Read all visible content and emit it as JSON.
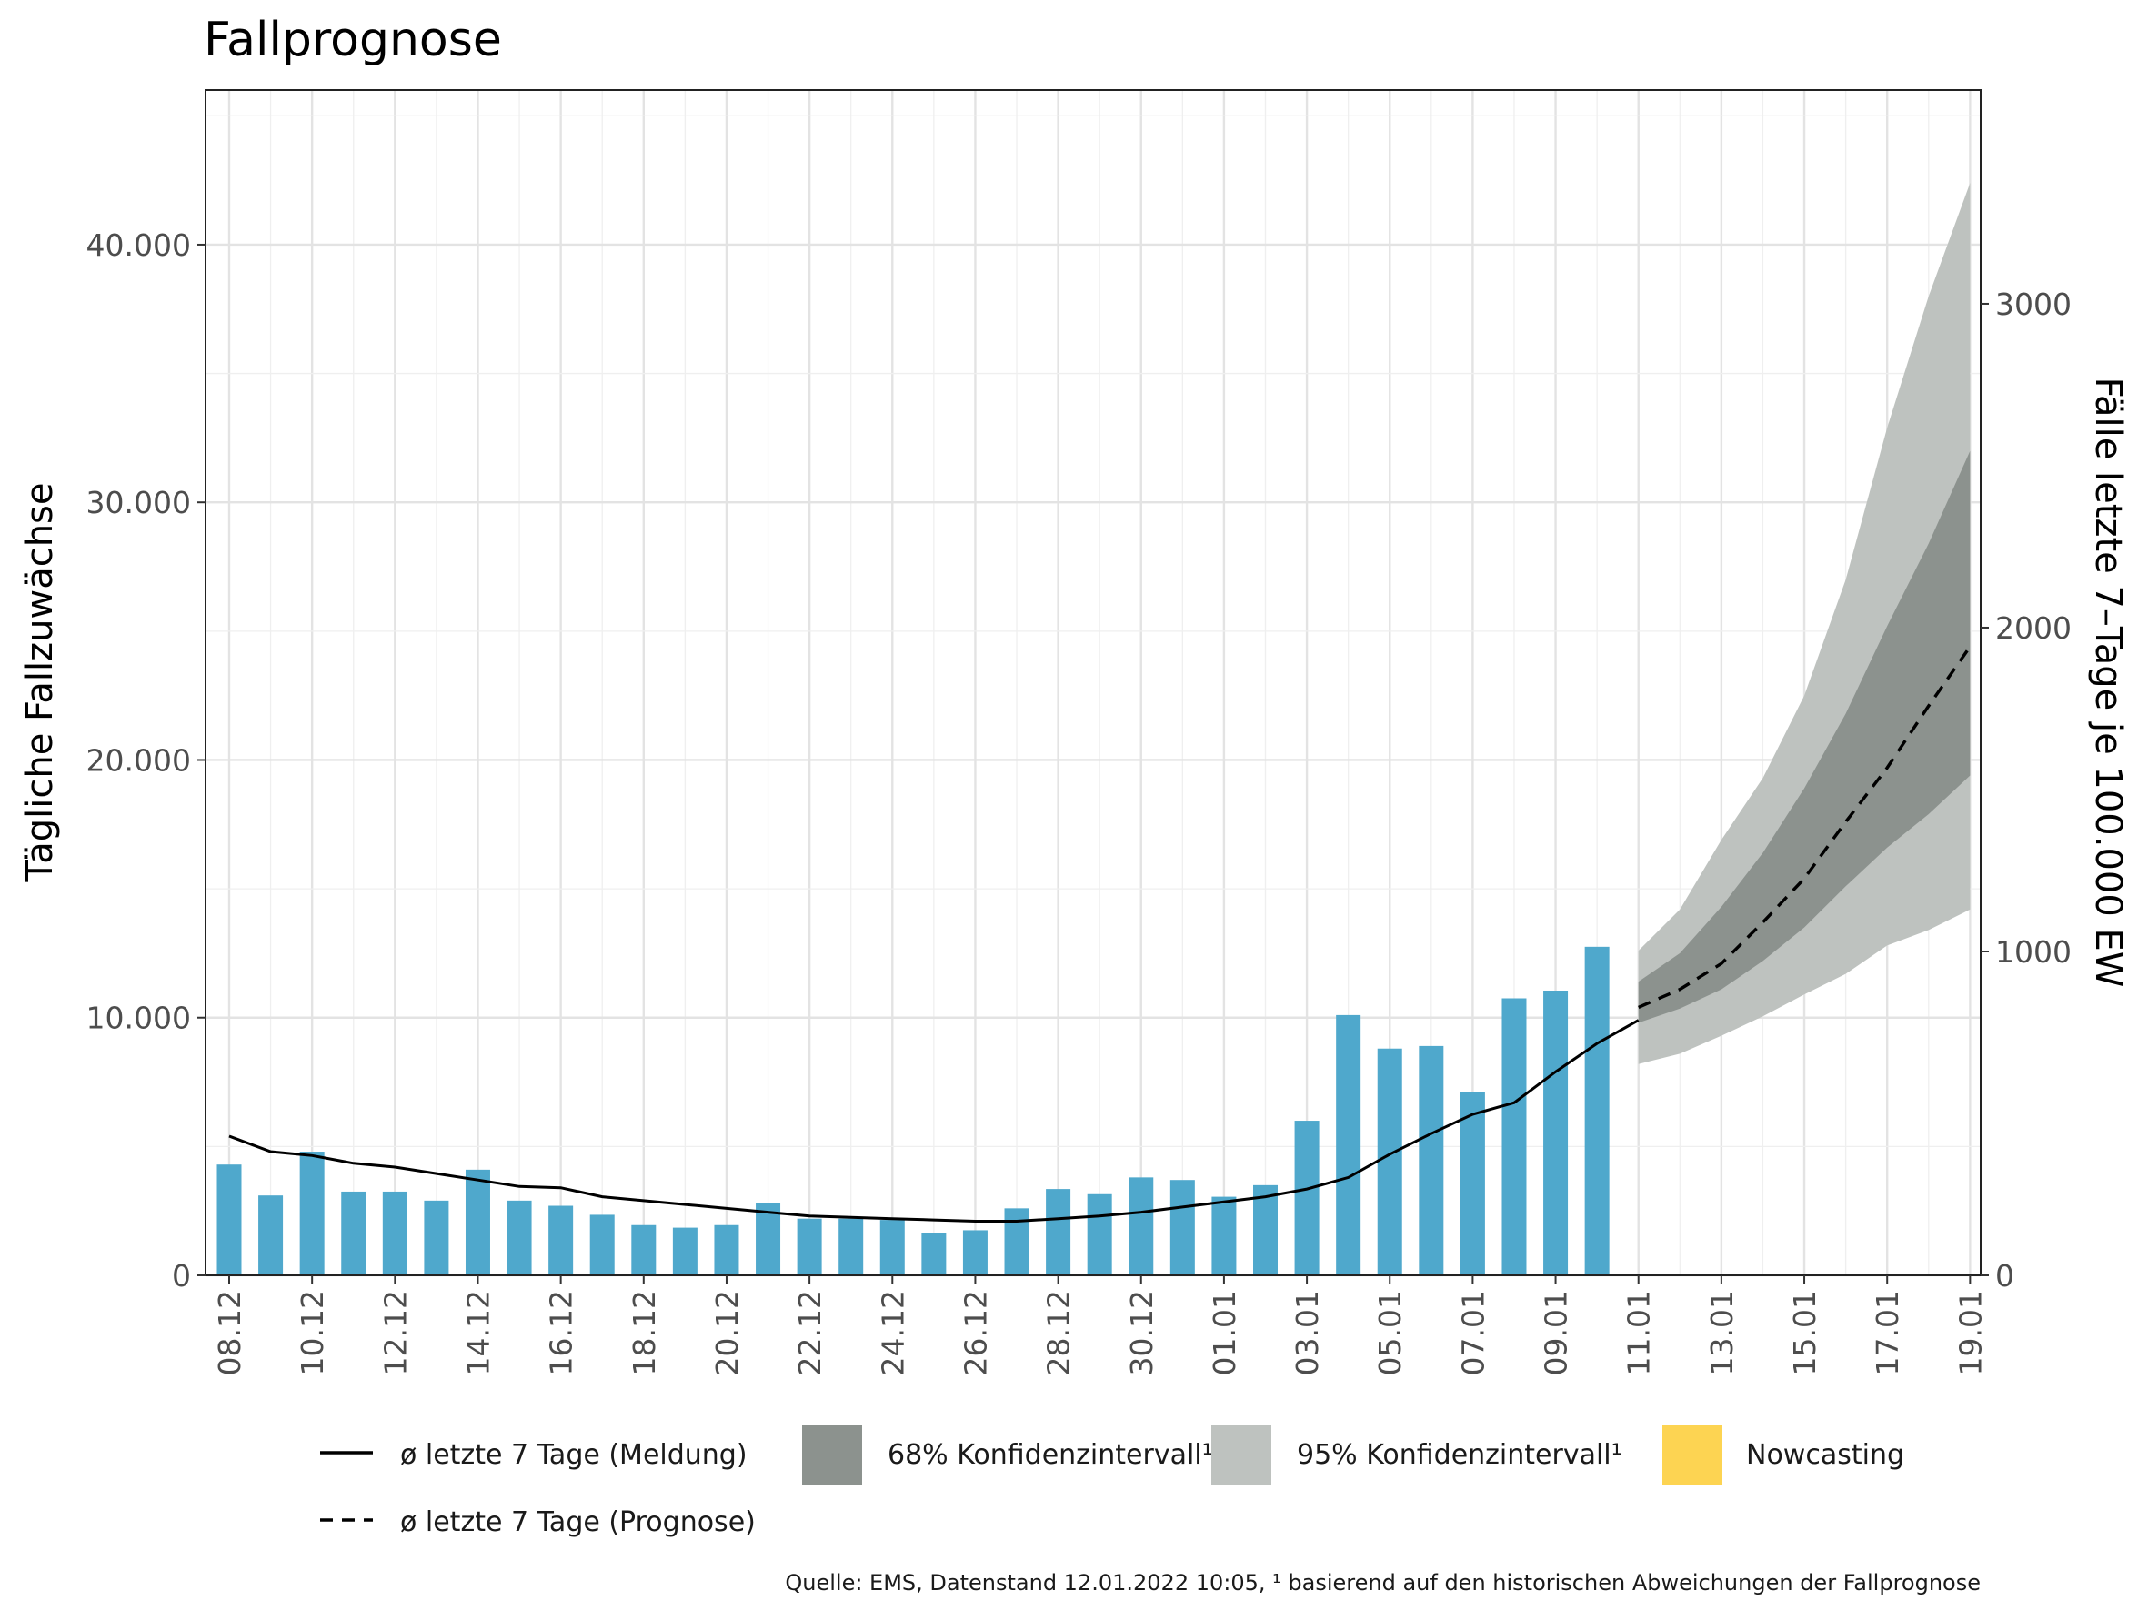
{
  "chart_data": {
    "type": "bar",
    "title": "Fallprognose",
    "ylabel": "Tägliche Fallzuwächse",
    "ylabel_right": "Fälle letzte 7–Tage je 100.000 EW",
    "ylim": [
      0,
      46000
    ],
    "ylim_right": [
      0,
      3660
    ],
    "yticks": [
      {
        "value": 0,
        "label": "0"
      },
      {
        "value": 10000,
        "label": "10.000"
      },
      {
        "value": 20000,
        "label": "20.000"
      },
      {
        "value": 30000,
        "label": "30.000"
      },
      {
        "value": 40000,
        "label": "40.000"
      }
    ],
    "yticks_right": [
      {
        "value": 0,
        "label": "0"
      },
      {
        "value": 1000,
        "label": "1000"
      },
      {
        "value": 2000,
        "label": "2000"
      },
      {
        "value": 3000,
        "label": "3000"
      }
    ],
    "xtick_labels": [
      "08.12",
      "10.12",
      "12.12",
      "14.12",
      "16.12",
      "18.12",
      "20.12",
      "22.12",
      "24.12",
      "26.12",
      "28.12",
      "30.12",
      "01.01",
      "03.01",
      "05.01",
      "07.01",
      "09.01",
      "11.01",
      "13.01",
      "15.01",
      "17.01",
      "19.01"
    ],
    "grid": true,
    "legend_position": "bottom",
    "series": [
      {
        "name": "Tägliche Fallzuwächse",
        "kind": "bar",
        "color": "#4fa8cc",
        "values": [
          4300,
          3100,
          4800,
          3250,
          3250,
          2900,
          4100,
          2900,
          2700,
          2350,
          1950,
          1850,
          1950,
          2800,
          2200,
          2200,
          2150,
          1650,
          1750,
          2600,
          3350,
          3150,
          3800,
          3700,
          3050,
          3500,
          6000,
          10100,
          8800,
          8900,
          7100,
          10750,
          11050,
          12750
        ]
      },
      {
        "name": "ø letzte 7 Tage (Meldung)",
        "kind": "line",
        "color": "#000000",
        "values": [
          5400,
          4800,
          4650,
          4350,
          4200,
          3950,
          3700,
          3450,
          3400,
          3050,
          2900,
          2750,
          2600,
          2450,
          2300,
          2250,
          2200,
          2150,
          2100,
          2100,
          2200,
          2300,
          2450,
          2650,
          2850,
          3050,
          3350,
          3800,
          4700,
          5500,
          6250,
          6700,
          7900,
          9000,
          9900
        ]
      },
      {
        "name": "ø letzte 7 Tage (Prognose)",
        "kind": "dashed-line",
        "color": "#000000",
        "values": [
          10400,
          11100,
          12100,
          13700,
          15400,
          17600,
          19700,
          22100,
          24400
        ]
      },
      {
        "name": "68% Konfidenzintervall¹",
        "kind": "band",
        "color": "#8c928e",
        "lower": [
          9800,
          10350,
          11100,
          12200,
          13500,
          15100,
          16600,
          17900,
          19400
        ],
        "upper": [
          11400,
          12500,
          14300,
          16400,
          18900,
          21800,
          25200,
          28400,
          32000
        ]
      },
      {
        "name": "95% Konfidenzintervall¹",
        "kind": "band",
        "color": "#bec2bf",
        "lower": [
          8200,
          8600,
          9300,
          10050,
          10900,
          11700,
          12800,
          13400,
          14200
        ],
        "upper": [
          12600,
          14200,
          16900,
          19300,
          22500,
          27000,
          32900,
          38000,
          42400
        ]
      },
      {
        "name": "Nowcasting",
        "kind": "legend-only",
        "color": "#fdd452"
      }
    ],
    "source": "Quelle: EMS, Datenstand 12.01.2022 10:05, ¹ basierend auf den historischen Abweichungen der Fallprognose"
  }
}
